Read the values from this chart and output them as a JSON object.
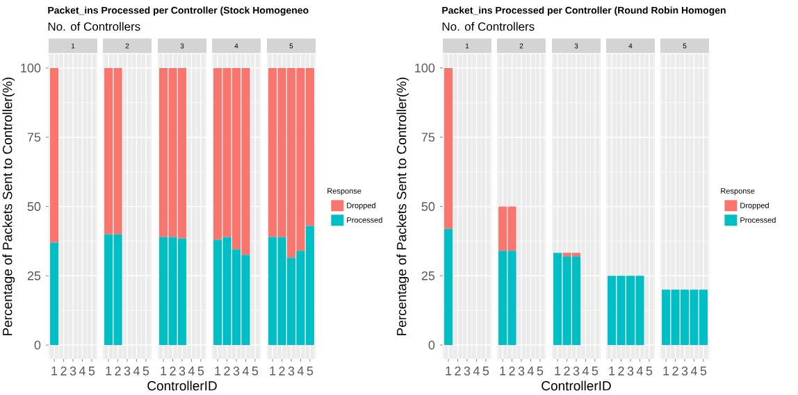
{
  "chart_data": [
    {
      "type": "bar",
      "stacked": true,
      "title": "1",
      "annotations": [
        "Packet_ins Processed per Controller (Stock Homogeneo",
        "No. of Controllers"
      ],
      "ylabel": "Percentage of Packets Sent to Controller(%)",
      "categories": [
        "1",
        "2",
        "3",
        "4",
        "5"
      ],
      "ylim": [
        -5,
        105
      ],
      "yticks": [
        0,
        25,
        50,
        75,
        100
      ],
      "grid": true,
      "series": [
        {
          "color": "#00bfc4",
          "values": [
            37,
            null,
            null,
            null,
            null
          ]
        },
        {
          "color": "#f8766d",
          "values": [
            63,
            null,
            null,
            null,
            null
          ]
        }
      ]
    },
    {
      "type": "bar",
      "stacked": true,
      "title": "2",
      "categories": [
        "1",
        "2",
        "3",
        "4",
        "5"
      ],
      "ylim": [
        -5,
        105
      ],
      "yticks": [
        0,
        25,
        50,
        75,
        100
      ],
      "grid": true,
      "tick_labels": "x",
      "series": [
        {
          "color": "#00bfc4",
          "values": [
            40,
            40,
            null,
            null,
            null
          ]
        },
        {
          "color": "#f8766d",
          "values": [
            60,
            60,
            null,
            null,
            null
          ]
        }
      ]
    },
    {
      "type": "bar",
      "stacked": true,
      "title": "3",
      "xlabel": "ControllerID",
      "categories": [
        "1",
        "2",
        "3",
        "4",
        "5"
      ],
      "ylim": [
        -5,
        105
      ],
      "yticks": [
        0,
        25,
        50,
        75,
        100
      ],
      "grid": true,
      "tick_labels": "x",
      "series": [
        {
          "color": "#00bfc4",
          "values": [
            39,
            39,
            38.5,
            null,
            null
          ]
        },
        {
          "color": "#f8766d",
          "values": [
            61,
            61,
            61.5,
            null,
            null
          ]
        }
      ]
    },
    {
      "type": "bar",
      "stacked": true,
      "title": "4",
      "categories": [
        "1",
        "2",
        "3",
        "4",
        "5"
      ],
      "ylim": [
        -5,
        105
      ],
      "yticks": [
        0,
        25,
        50,
        75,
        100
      ],
      "grid": true,
      "tick_labels": "x",
      "series": [
        {
          "color": "#00bfc4",
          "values": [
            38,
            39,
            34.5,
            32.5,
            null
          ]
        },
        {
          "color": "#f8766d",
          "values": [
            62,
            61,
            65.5,
            67.5,
            null
          ]
        }
      ]
    },
    {
      "type": "bar",
      "stacked": true,
      "title": "5",
      "categories": [
        "1",
        "2",
        "3",
        "4",
        "5"
      ],
      "ylim": [
        -5,
        105
      ],
      "yticks": [
        0,
        25,
        50,
        75,
        100
      ],
      "grid": true,
      "tick_labels": "x",
      "legend": "right",
      "legend_title": "Response",
      "series": [
        {
          "name": "Processed",
          "color": "#00bfc4",
          "values": [
            39,
            39,
            31.5,
            34,
            43
          ]
        },
        {
          "name": "Dropped",
          "color": "#f8766d",
          "values": [
            61,
            61,
            68.5,
            66,
            57
          ]
        }
      ]
    },
    {
      "type": "bar",
      "stacked": true,
      "title": "1",
      "annotations": [
        "Packet_ins Processed per Controller (Round Robin Homogen",
        "No. of Controllers"
      ],
      "ylabel": "Percentage of Packets Sent to Controller(%)",
      "categories": [
        "1",
        "2",
        "3",
        "4",
        "5"
      ],
      "ylim": [
        -5,
        105
      ],
      "yticks": [
        0,
        25,
        50,
        75,
        100
      ],
      "grid": true,
      "series": [
        {
          "color": "#00bfc4",
          "values": [
            42,
            null,
            null,
            null,
            null
          ]
        },
        {
          "color": "#f8766d",
          "values": [
            58,
            null,
            null,
            null,
            null
          ]
        }
      ]
    },
    {
      "type": "bar",
      "stacked": true,
      "title": "2",
      "categories": [
        "1",
        "2",
        "3",
        "4",
        "5"
      ],
      "ylim": [
        -5,
        105
      ],
      "yticks": [
        0,
        25,
        50,
        75,
        100
      ],
      "grid": true,
      "tick_labels": "x",
      "series": [
        {
          "color": "#00bfc4",
          "values": [
            34,
            34,
            null,
            null,
            null
          ]
        },
        {
          "color": "#f8766d",
          "values": [
            16,
            16,
            null,
            null,
            null
          ]
        }
      ]
    },
    {
      "type": "bar",
      "stacked": true,
      "title": "3",
      "xlabel": "ControllerID",
      "categories": [
        "1",
        "2",
        "3",
        "4",
        "5"
      ],
      "ylim": [
        -5,
        105
      ],
      "yticks": [
        0,
        25,
        50,
        75,
        100
      ],
      "grid": true,
      "tick_labels": "x",
      "series": [
        {
          "color": "#00bfc4",
          "values": [
            33.3,
            32,
            32,
            null,
            null
          ]
        },
        {
          "color": "#f8766d",
          "values": [
            0,
            1.3,
            1.3,
            null,
            null
          ]
        }
      ]
    },
    {
      "type": "bar",
      "stacked": true,
      "title": "4",
      "categories": [
        "1",
        "2",
        "3",
        "4",
        "5"
      ],
      "ylim": [
        -5,
        105
      ],
      "yticks": [
        0,
        25,
        50,
        75,
        100
      ],
      "grid": true,
      "tick_labels": "x",
      "series": [
        {
          "color": "#00bfc4",
          "values": [
            25,
            25,
            25,
            25,
            null
          ]
        },
        {
          "color": "#f8766d",
          "values": [
            0,
            0,
            0,
            0,
            null
          ]
        }
      ]
    },
    {
      "type": "bar",
      "stacked": true,
      "title": "5",
      "categories": [
        "1",
        "2",
        "3",
        "4",
        "5"
      ],
      "ylim": [
        -5,
        105
      ],
      "yticks": [
        0,
        25,
        50,
        75,
        100
      ],
      "grid": true,
      "tick_labels": "x",
      "legend": "right",
      "legend_title": "Response",
      "series": [
        {
          "name": "Processed",
          "color": "#00bfc4",
          "values": [
            20,
            20,
            20,
            20,
            20
          ]
        },
        {
          "name": "Dropped",
          "color": "#f8766d",
          "values": [
            0,
            0,
            0,
            0,
            0
          ]
        }
      ]
    }
  ]
}
